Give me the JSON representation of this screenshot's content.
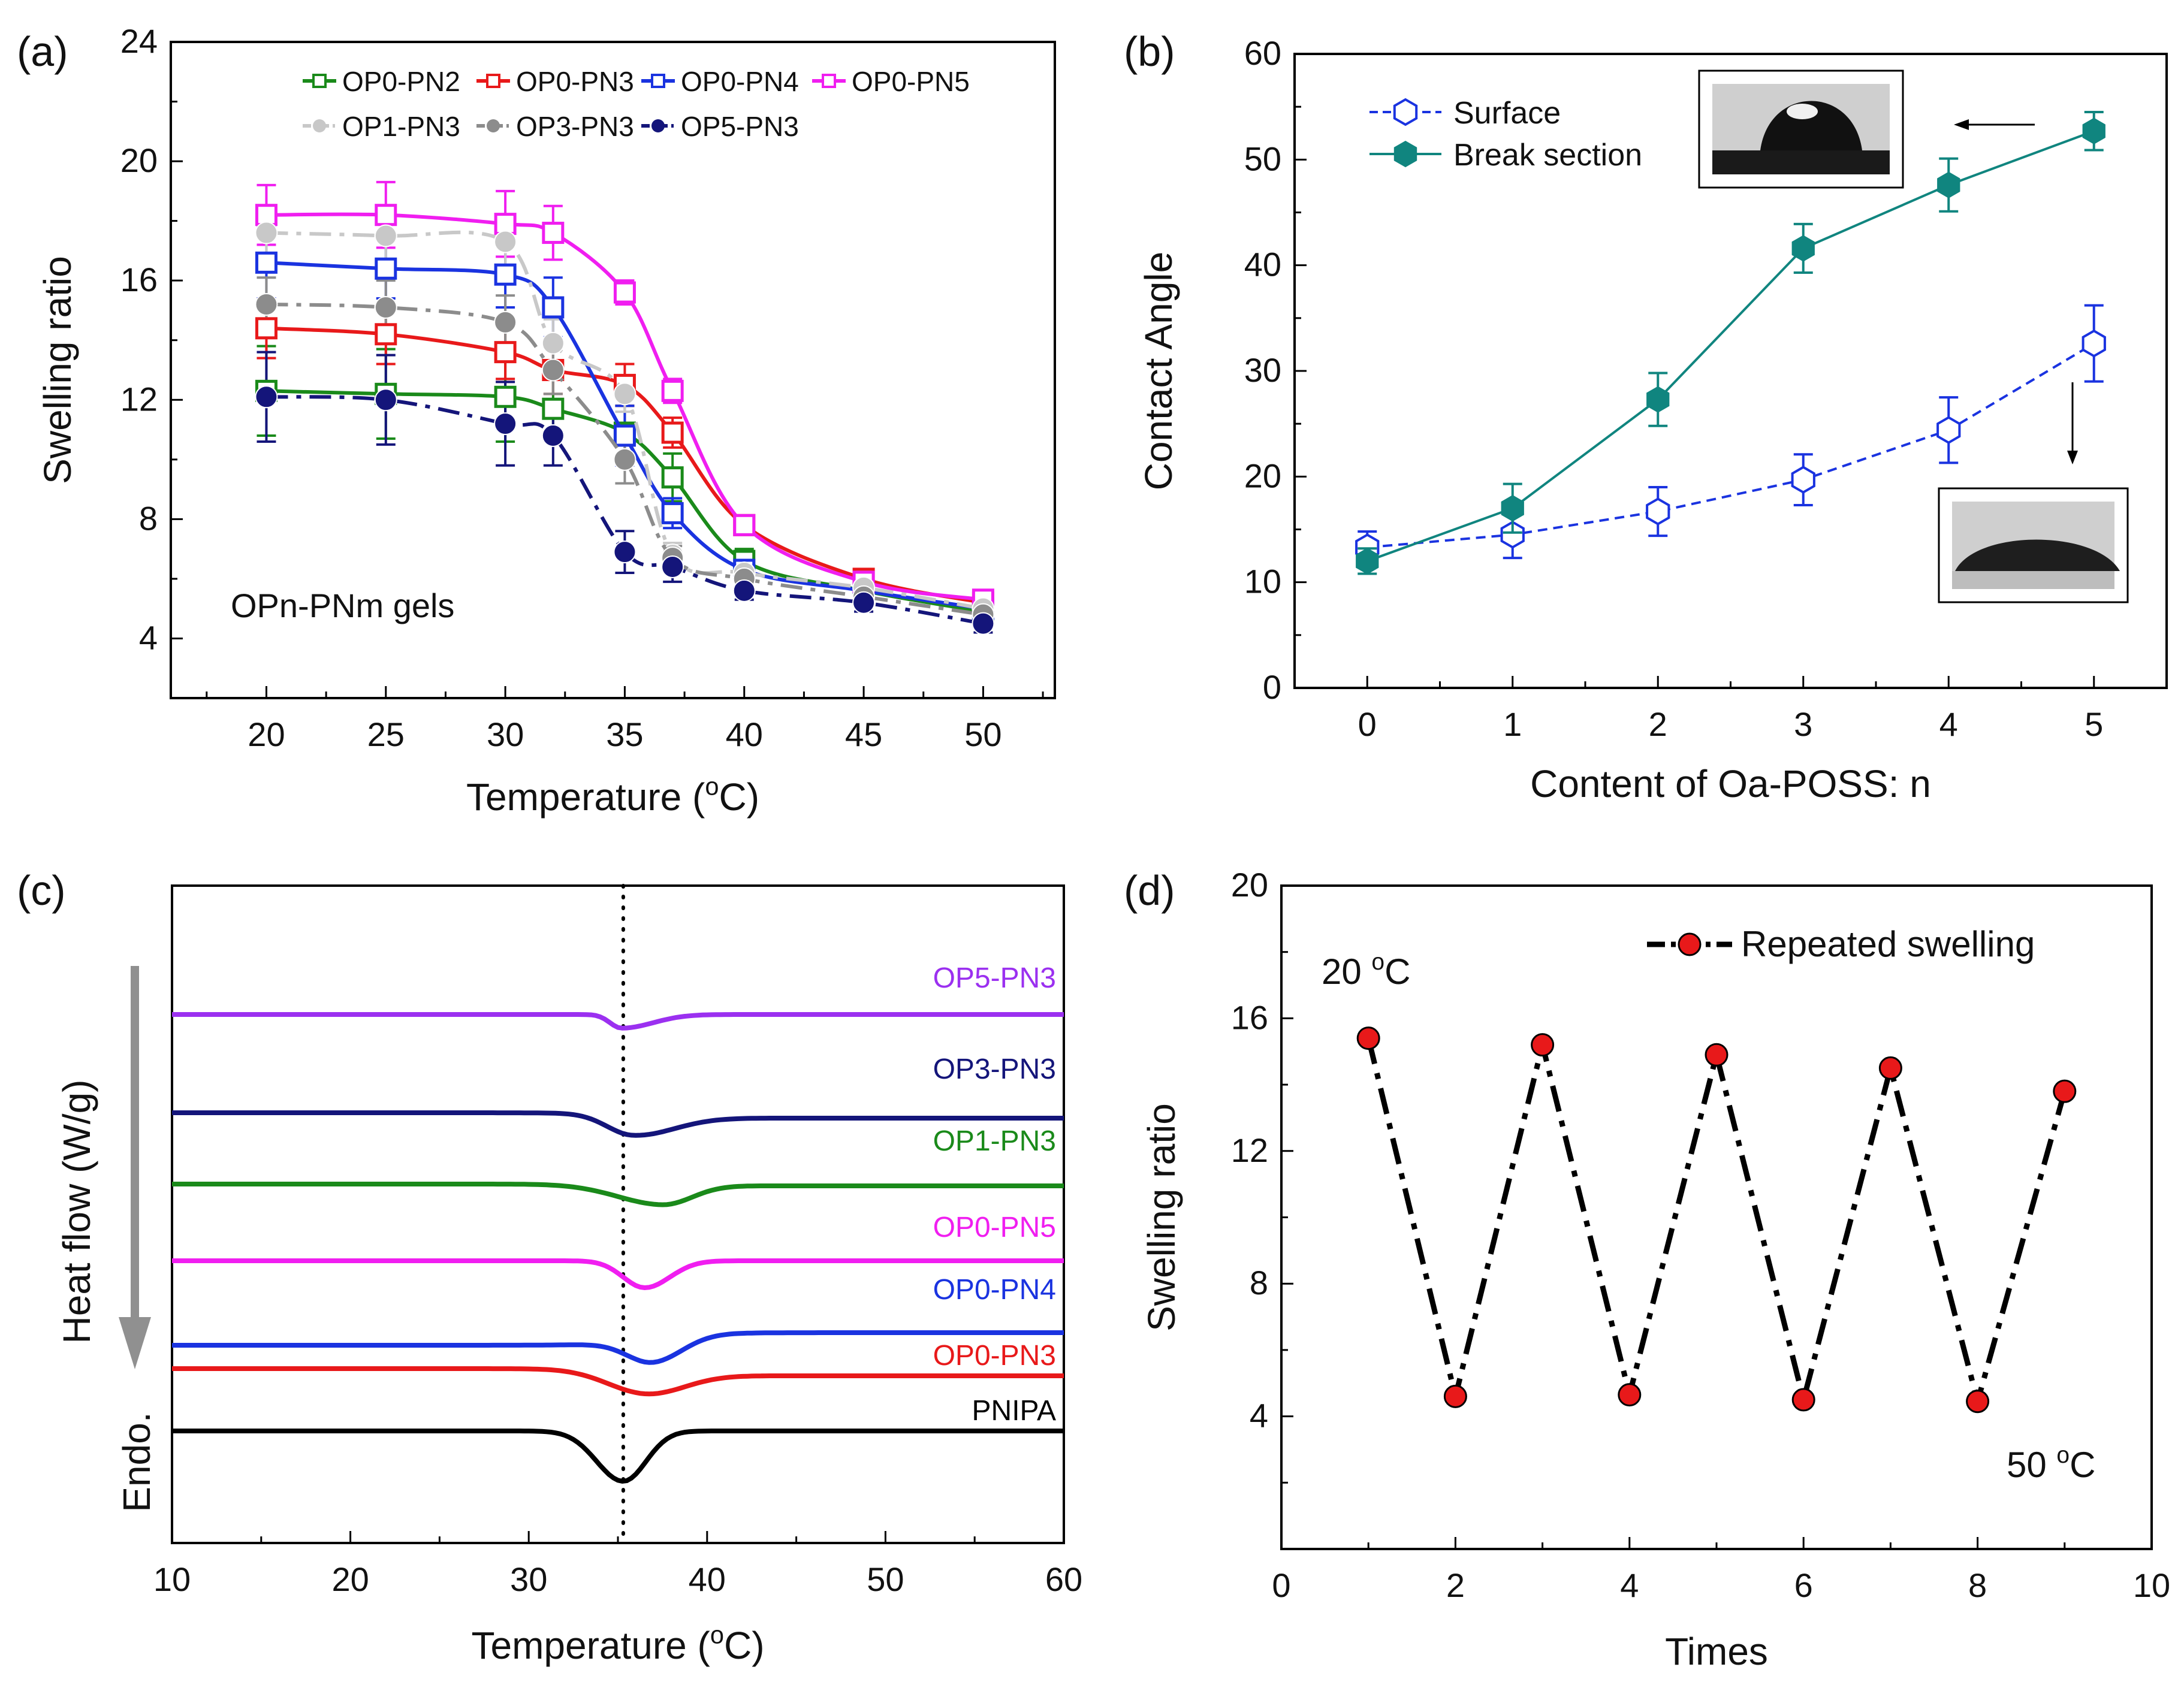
{
  "chart_data": [
    {
      "panel": "(a)",
      "type": "line",
      "xlabel": "Temperature (",
      "xlabel_sup": "o",
      "xlabel_tail": "C)",
      "ylabel": "Swelling ratio",
      "xlim": [
        16,
        53
      ],
      "ylim": [
        2,
        24
      ],
      "xticks": [
        20,
        25,
        30,
        35,
        40,
        45,
        50
      ],
      "yticks": [
        4,
        8,
        12,
        16,
        20,
        24
      ],
      "annotation": "OPn-PNm gels",
      "x": [
        20,
        25,
        30,
        32,
        35,
        37,
        40,
        45,
        50
      ],
      "series": [
        {
          "name": "OP0-PN2",
          "color": "#1a8a1a",
          "marker": "open-square",
          "dash": "solid",
          "values": [
            12.3,
            12.2,
            12.1,
            11.7,
            10.9,
            9.4,
            6.6,
            5.6,
            4.9
          ],
          "errors": [
            1.5,
            1.5,
            1.5,
            1.0,
            0.9,
            0.8,
            0.4,
            0.3,
            0.3
          ]
        },
        {
          "name": "OP0-PN3",
          "color": "#e8191a",
          "marker": "open-square",
          "dash": "solid",
          "values": [
            14.4,
            14.2,
            13.6,
            13.0,
            12.5,
            10.9,
            7.8,
            6.0,
            5.2
          ],
          "errors": [
            1.0,
            1.0,
            0.9,
            0.8,
            0.7,
            0.5,
            0.3,
            0.3,
            0.3
          ]
        },
        {
          "name": "OP0-PN4",
          "color": "#1a33e0",
          "marker": "open-square",
          "dash": "solid",
          "values": [
            16.6,
            16.4,
            16.2,
            15.1,
            10.8,
            8.2,
            6.3,
            5.6,
            5.0
          ],
          "errors": [
            1.2,
            1.0,
            1.1,
            1.0,
            1.0,
            0.5,
            0.3,
            0.3,
            0.3
          ]
        },
        {
          "name": "OP0-PN5",
          "color": "#f01ef0",
          "marker": "open-square",
          "dash": "solid",
          "values": [
            18.2,
            18.2,
            17.9,
            17.6,
            15.6,
            12.3,
            7.8,
            5.9,
            5.3
          ],
          "errors": [
            1.0,
            1.1,
            1.1,
            0.9,
            0.4,
            0.4,
            0.3,
            0.3,
            0.3
          ]
        },
        {
          "name": "OP1-PN3",
          "color": "#c8c8c8",
          "marker": "filled-circle",
          "dash": "dash-dot",
          "values": [
            17.6,
            17.5,
            17.3,
            13.9,
            12.2,
            6.8,
            6.2,
            5.7,
            5.0
          ],
          "errors": [
            0.9,
            0.9,
            0.9,
            0.8,
            0.6,
            0.4,
            0.3,
            0.3,
            0.3
          ]
        },
        {
          "name": "OP3-PN3",
          "color": "#8c8c8c",
          "marker": "filled-circle",
          "dash": "dash-dot",
          "values": [
            15.2,
            15.1,
            14.6,
            13.0,
            10.0,
            6.7,
            6.0,
            5.4,
            4.8
          ],
          "errors": [
            0.9,
            0.9,
            0.9,
            0.8,
            0.8,
            0.4,
            0.3,
            0.3,
            0.3
          ]
        },
        {
          "name": "OP5-PN3",
          "color": "#14157a",
          "marker": "filled-circle",
          "dash": "dash-dot",
          "values": [
            12.1,
            12.0,
            11.2,
            10.8,
            6.9,
            6.4,
            5.6,
            5.2,
            4.5
          ],
          "errors": [
            1.5,
            1.5,
            1.4,
            1.0,
            0.7,
            0.5,
            0.3,
            0.3,
            0.3
          ]
        }
      ]
    },
    {
      "panel": "(b)",
      "type": "line",
      "xlabel": "Content of Oa-POSS: n",
      "ylabel": "Contact Angle",
      "xlim": [
        -0.5,
        5.5
      ],
      "ylim": [
        0,
        60
      ],
      "xticks": [
        0,
        1,
        2,
        3,
        4,
        5
      ],
      "yticks": [
        0,
        10,
        20,
        30,
        40,
        50,
        60
      ],
      "x": [
        0,
        1,
        2,
        3,
        4,
        5
      ],
      "series": [
        {
          "name": "Surface",
          "color": "#1a33e0",
          "marker": "open-hexagon",
          "dash": "dash",
          "values": [
            13.3,
            14.5,
            16.7,
            19.7,
            24.4,
            32.6
          ],
          "errors": [
            1.5,
            2.2,
            2.3,
            2.4,
            3.1,
            3.6
          ]
        },
        {
          "name": "Break section",
          "color": "#10857f",
          "marker": "filled-hexagon",
          "dash": "solid",
          "values": [
            12.0,
            17.0,
            27.3,
            41.6,
            47.6,
            52.7
          ],
          "errors": [
            1.2,
            2.3,
            2.5,
            2.3,
            2.5,
            1.8
          ]
        }
      ]
    },
    {
      "panel": "(c)",
      "type": "line",
      "xlabel": "Temperature (",
      "xlabel_sup": "o",
      "xlabel_tail": "C)",
      "ylabel": "Heat flow (W/g)",
      "endo_label": "Endo.",
      "xlim": [
        10,
        60
      ],
      "xticks": [
        10,
        20,
        30,
        40,
        50,
        60
      ],
      "reference_line_x": 35.3,
      "curve_domain": [
        10,
        60
      ],
      "series": [
        {
          "name": "OP5-PN3",
          "color": "#9b30f0",
          "baseline_left": 0.0,
          "baseline_right": 0.0,
          "dip_center": 35.2,
          "dip_depth": 0.38,
          "dip_width_left": 0.9,
          "dip_width_right": 2.5,
          "base_offset": 0
        },
        {
          "name": "OP3-PN3",
          "color": "#14157a",
          "baseline_left": 0.0,
          "baseline_right": -0.15,
          "dip_center": 35.8,
          "dip_depth": 0.55,
          "dip_width_left": 2.0,
          "dip_width_right": 3.2,
          "base_offset": 1
        },
        {
          "name": "OP1-PN3",
          "color": "#1a8a1a",
          "baseline_left": 0.0,
          "baseline_right": -0.05,
          "dip_center": 37.5,
          "dip_depth": 0.55,
          "dip_width_left": 3.6,
          "dip_width_right": 2.3,
          "base_offset": 2
        },
        {
          "name": "OP0-PN5",
          "color": "#f01ef0",
          "baseline_left": 0.0,
          "baseline_right": 0.0,
          "dip_center": 36.5,
          "dip_depth": 0.75,
          "dip_width_left": 1.7,
          "dip_width_right": 2.0,
          "base_offset": 3
        },
        {
          "name": "OP0-PN4",
          "color": "#1a33e0",
          "baseline_left": -0.15,
          "baseline_right": 0.2,
          "dip_center": 37.0,
          "dip_depth": 0.65,
          "dip_width_left": 2.0,
          "dip_width_right": 2.3,
          "base_offset": 4
        },
        {
          "name": "OP0-PN3",
          "color": "#e8191a",
          "baseline_left": 0.2,
          "baseline_right": 0.0,
          "dip_center": 36.5,
          "dip_depth": 0.6,
          "dip_width_left": 3.0,
          "dip_width_right": 3.0,
          "base_offset": 5
        },
        {
          "name": "PNIPA",
          "color": "#000000",
          "baseline_left": 0.0,
          "baseline_right": 0.0,
          "dip_center": 35.3,
          "dip_depth": 1.4,
          "dip_width_left": 2.1,
          "dip_width_right": 1.8,
          "base_offset": 6
        }
      ]
    },
    {
      "panel": "(d)",
      "type": "line",
      "xlabel": "Times",
      "ylabel": "Swelling ratio",
      "xlim": [
        0,
        10
      ],
      "ylim": [
        0,
        20
      ],
      "xticks": [
        0,
        2,
        4,
        6,
        8,
        10
      ],
      "yticks": [
        4,
        8,
        12,
        16,
        20
      ],
      "x": [
        1,
        2,
        3,
        4,
        5,
        6,
        7,
        8,
        9
      ],
      "series": [
        {
          "name": "Repeated swelling",
          "color": "#000000",
          "marker_color": "#e8191a",
          "marker": "filled-circle",
          "dash": "dash-dot",
          "values": [
            15.4,
            4.6,
            15.2,
            4.65,
            14.9,
            4.5,
            14.5,
            4.45,
            13.8
          ]
        }
      ],
      "annotations": [
        {
          "text": "20 ",
          "sup": "o",
          "tail": "C"
        },
        {
          "text": "50 ",
          "sup": "o",
          "tail": "C"
        }
      ]
    }
  ]
}
